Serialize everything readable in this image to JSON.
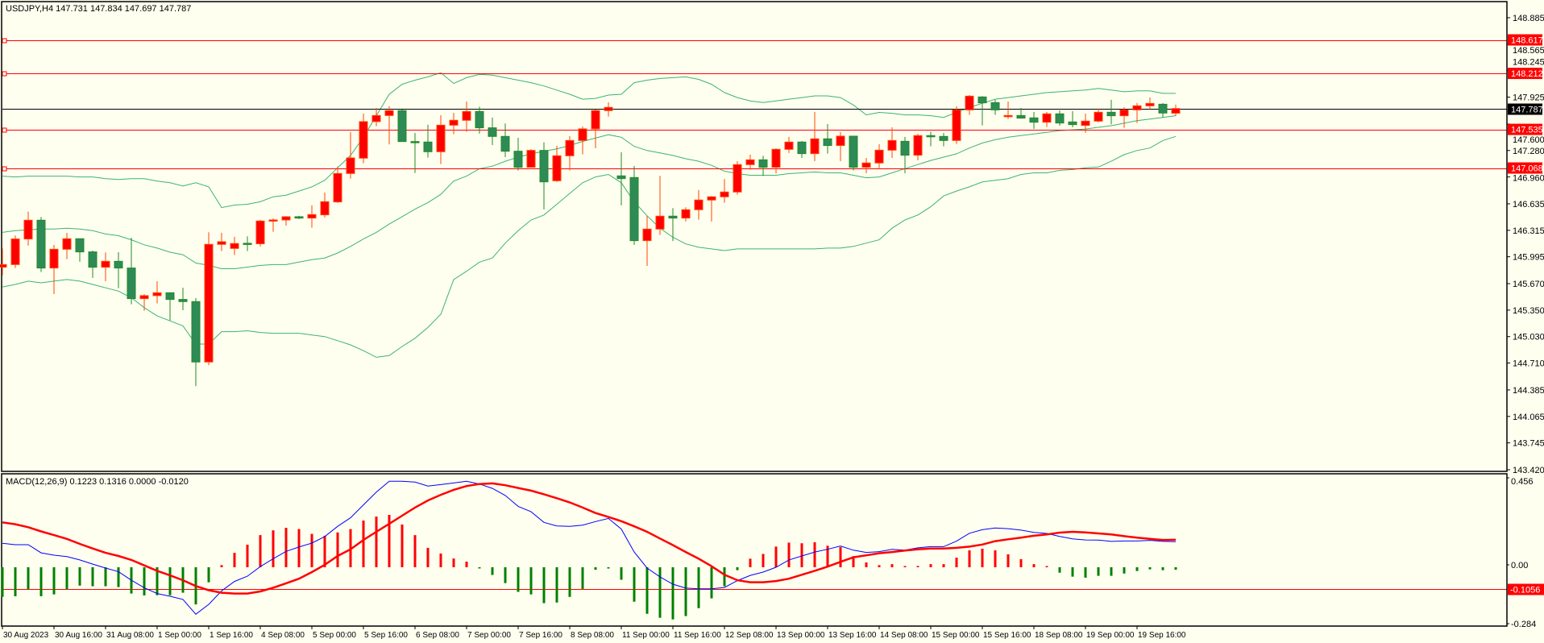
{
  "header": {
    "symbol_info": "USDJPY,H4  147.731 147.834 147.697 147.787",
    "macd_info": "MACD(12,26,9) 0.1223 0.1316 0.0000 -0.0120"
  },
  "colors": {
    "background": "#FFFFF0",
    "bull_body": "#FF0000",
    "bull_wick": "#FF4500",
    "bear_body": "#2E8B57",
    "bear_wick": "#228B22",
    "bands": "#3CB371",
    "level_line": "#FF0000",
    "price_line": "#000000",
    "macd_main": "#0000FF",
    "macd_signal": "#FF0000",
    "hist_pos": "#FF0000",
    "hist_neg": "#008000"
  },
  "price_axis": {
    "labels": [
      "148.885",
      "148.565",
      "148.245",
      "147.925",
      "147.600",
      "147.280",
      "146.960",
      "146.635",
      "146.315",
      "145.995",
      "145.670",
      "145.350",
      "145.030",
      "144.710",
      "144.385",
      "144.065",
      "143.745",
      "143.420"
    ]
  },
  "levels": [
    {
      "value": "148.617"
    },
    {
      "value": "148.212"
    },
    {
      "value": "147.535"
    },
    {
      "value": "147.068"
    }
  ],
  "current_price": "147.787",
  "macd_axis": {
    "labels": [
      "0.456",
      "0.00",
      "-0.284"
    ],
    "level": "-0.1056"
  },
  "time_axis": {
    "labels": [
      "30 Aug 2023",
      "30 Aug 16:00",
      "31 Aug 08:00",
      "1 Sep 00:00",
      "1 Sep 16:00",
      "4 Sep 08:00",
      "5 Sep 00:00",
      "5 Sep 16:00",
      "6 Sep 08:00",
      "7 Sep 00:00",
      "7 Sep 16:00",
      "8 Sep 08:00",
      "11 Sep 00:00",
      "11 Sep 16:00",
      "12 Sep 08:00",
      "13 Sep 00:00",
      "13 Sep 16:00",
      "14 Sep 08:00",
      "15 Sep 00:00",
      "15 Sep 16:00",
      "18 Sep 08:00",
      "19 Sep 00:00",
      "19 Sep 16:00"
    ]
  },
  "chart_data": {
    "type": "candlestick",
    "symbol": "USDJPY",
    "timeframe": "H4",
    "ylim": [
      143.42,
      148.885
    ],
    "ohlc": [
      [
        145.869,
        146.096,
        145.771,
        145.901
      ],
      [
        145.901,
        146.252,
        145.859,
        146.21
      ],
      [
        146.21,
        146.541,
        146.129,
        146.437
      ],
      [
        146.437,
        146.476,
        145.81,
        145.859
      ],
      [
        145.859,
        146.138,
        145.544,
        146.086
      ],
      [
        146.086,
        146.284,
        145.966,
        146.213
      ],
      [
        146.213,
        146.213,
        145.934,
        146.054
      ],
      [
        146.054,
        146.07,
        145.739,
        145.869
      ],
      [
        145.869,
        146.047,
        145.7,
        145.94
      ],
      [
        145.94,
        146.05,
        145.616,
        145.859
      ],
      [
        145.859,
        146.226,
        145.421,
        145.489
      ],
      [
        145.489,
        145.544,
        145.343,
        145.525
      ],
      [
        145.525,
        145.7,
        145.431,
        145.56
      ],
      [
        145.56,
        145.56,
        145.226,
        145.479
      ],
      [
        145.479,
        145.622,
        145.349,
        145.453
      ],
      [
        145.453,
        145.496,
        144.431,
        144.723
      ],
      [
        144.723,
        146.291,
        144.684,
        146.145
      ],
      [
        146.145,
        146.285,
        146.064,
        146.177
      ],
      [
        146.096,
        146.236,
        146.015,
        146.155
      ],
      [
        146.158,
        146.242,
        146.064,
        146.155
      ],
      [
        146.152,
        146.44,
        146.119,
        146.427
      ],
      [
        146.427,
        146.46,
        146.297,
        146.44
      ],
      [
        146.44,
        146.486,
        146.372,
        146.479
      ],
      [
        146.479,
        146.49,
        146.45,
        146.463
      ],
      [
        146.463,
        146.616,
        146.346,
        146.505
      ],
      [
        146.502,
        146.771,
        146.47,
        146.661
      ],
      [
        146.658,
        147.086,
        146.645,
        147.002
      ],
      [
        147.002,
        147.502,
        146.94,
        147.19
      ],
      [
        147.187,
        147.726,
        147.125,
        147.629
      ],
      [
        147.629,
        147.794,
        147.573,
        147.703
      ],
      [
        147.703,
        147.814,
        147.353,
        147.762
      ],
      [
        147.762,
        147.775,
        147.388,
        147.388
      ],
      [
        147.388,
        147.492,
        147.009,
        147.385
      ],
      [
        147.382,
        147.59,
        147.194,
        147.265
      ],
      [
        147.265,
        147.707,
        147.116,
        147.586
      ],
      [
        147.586,
        147.736,
        147.476,
        147.645
      ],
      [
        147.645,
        147.872,
        147.505,
        147.752
      ],
      [
        147.752,
        147.81,
        147.483,
        147.554
      ],
      [
        147.554,
        147.677,
        147.346,
        147.45
      ],
      [
        147.45,
        147.606,
        147.2,
        147.271
      ],
      [
        147.271,
        147.434,
        147.038,
        147.077
      ],
      [
        147.077,
        147.297,
        147.077,
        147.281
      ],
      [
        147.281,
        147.379,
        146.567,
        146.901
      ],
      [
        146.914,
        147.336,
        146.9,
        147.216
      ],
      [
        147.216,
        147.453,
        147.038,
        147.401
      ],
      [
        147.401,
        147.57,
        147.233,
        147.541
      ],
      [
        147.541,
        147.775,
        147.307,
        147.762
      ],
      [
        147.762,
        147.862,
        147.69,
        147.801
      ],
      [
        146.973,
        147.259,
        146.616,
        146.94
      ],
      [
        146.953,
        147.093,
        146.138,
        146.19
      ],
      [
        146.19,
        146.486,
        145.885,
        146.33
      ],
      [
        146.33,
        146.973,
        146.258,
        146.486
      ],
      [
        146.486,
        146.583,
        146.184,
        146.463
      ],
      [
        146.463,
        146.593,
        146.421,
        146.564
      ],
      [
        146.564,
        146.801,
        146.444,
        146.681
      ],
      [
        146.681,
        146.73,
        146.421,
        146.72
      ],
      [
        146.72,
        146.934,
        146.648,
        146.778
      ],
      [
        146.778,
        147.151,
        146.746,
        147.109
      ],
      [
        147.109,
        147.229,
        147.047,
        147.167
      ],
      [
        147.167,
        147.216,
        146.973,
        147.077
      ],
      [
        147.077,
        147.307,
        147.005,
        147.294
      ],
      [
        147.294,
        147.444,
        147.249,
        147.382
      ],
      [
        147.382,
        147.395,
        147.19,
        147.242
      ],
      [
        147.242,
        147.746,
        147.151,
        147.421
      ],
      [
        147.421,
        147.599,
        147.242,
        147.34
      ],
      [
        147.34,
        147.502,
        147.151,
        147.453
      ],
      [
        147.453,
        147.453,
        147.038,
        147.077
      ],
      [
        147.077,
        147.19,
        147.005,
        147.129
      ],
      [
        147.129,
        147.356,
        147.054,
        147.284
      ],
      [
        147.284,
        147.56,
        147.19,
        147.401
      ],
      [
        147.391,
        147.444,
        147.005,
        147.223
      ],
      [
        147.223,
        147.482,
        147.161,
        147.46
      ],
      [
        147.46,
        147.508,
        147.33,
        147.45
      ],
      [
        147.45,
        147.492,
        147.33,
        147.401
      ],
      [
        147.401,
        147.814,
        147.359,
        147.771
      ],
      [
        147.771,
        147.95,
        147.71,
        147.937
      ],
      [
        147.927,
        147.937,
        147.583,
        147.856
      ],
      [
        147.859,
        147.892,
        147.71,
        147.771
      ],
      [
        147.69,
        147.872,
        147.661,
        147.703
      ],
      [
        147.703,
        147.794,
        147.671,
        147.671
      ],
      [
        147.674,
        147.745,
        147.541,
        147.622
      ],
      [
        147.622,
        147.745,
        147.564,
        147.723
      ],
      [
        147.723,
        147.765,
        147.58,
        147.612
      ],
      [
        147.625,
        147.755,
        147.56,
        147.593
      ],
      [
        147.583,
        147.726,
        147.492,
        147.635
      ],
      [
        147.635,
        147.788,
        147.62,
        147.742
      ],
      [
        147.742,
        147.892,
        147.596,
        147.7
      ],
      [
        147.7,
        147.804,
        147.554,
        147.771
      ],
      [
        147.771,
        147.853,
        147.612,
        147.82
      ],
      [
        147.82,
        147.921,
        147.778,
        147.849
      ],
      [
        147.839,
        147.853,
        147.681,
        147.733
      ],
      [
        147.731,
        147.834,
        147.697,
        147.787
      ]
    ],
    "bollinger": {
      "upper": [
        146.97,
        146.96,
        146.97,
        146.97,
        146.97,
        146.97,
        146.96,
        146.96,
        146.94,
        146.93,
        146.94,
        146.94,
        146.91,
        146.89,
        146.85,
        146.89,
        146.84,
        146.59,
        146.62,
        146.63,
        146.66,
        146.72,
        146.74,
        146.79,
        146.84,
        146.92,
        147.07,
        147.22,
        147.44,
        147.7,
        147.96,
        148.08,
        148.13,
        148.17,
        148.22,
        148.09,
        148.16,
        148.2,
        148.19,
        148.16,
        148.13,
        148.1,
        148.06,
        148.01,
        147.96,
        147.9,
        147.91,
        147.95,
        147.96,
        148.1,
        148.13,
        148.15,
        148.16,
        148.17,
        148.14,
        148.08,
        147.98,
        147.92,
        147.88,
        147.86,
        147.88,
        147.9,
        147.92,
        147.94,
        147.94,
        147.92,
        147.83,
        147.71,
        147.74,
        147.73,
        147.71,
        147.71,
        147.7,
        147.68,
        147.74,
        147.8,
        147.85,
        147.9,
        147.92,
        147.94,
        147.96,
        147.98,
        147.99,
        148.0,
        148.01,
        148.03,
        148.01,
        147.99,
        148.0,
        148.0,
        147.97,
        147.97
      ],
      "middle": [
        146.29,
        146.31,
        146.32,
        146.33,
        146.33,
        146.34,
        146.33,
        146.31,
        146.27,
        146.25,
        146.2,
        146.14,
        146.1,
        146.05,
        146.02,
        145.92,
        145.89,
        145.85,
        145.85,
        145.87,
        145.89,
        145.9,
        145.9,
        145.93,
        145.96,
        145.98,
        146.04,
        146.12,
        146.21,
        146.29,
        146.39,
        146.48,
        146.57,
        146.65,
        146.75,
        146.91,
        146.97,
        147.06,
        147.09,
        147.15,
        147.2,
        147.24,
        147.27,
        147.3,
        147.34,
        147.39,
        147.43,
        147.47,
        147.44,
        147.33,
        147.28,
        147.25,
        147.22,
        147.18,
        147.15,
        147.1,
        147.03,
        147.0,
        146.98,
        146.98,
        146.98,
        147.0,
        147.01,
        147.02,
        147.01,
        147.01,
        146.98,
        146.95,
        146.96,
        147.01,
        147.06,
        147.11,
        147.16,
        147.2,
        147.24,
        147.31,
        147.37,
        147.41,
        147.44,
        147.46,
        147.48,
        147.5,
        147.52,
        147.53,
        147.54,
        147.56,
        147.58,
        147.61,
        147.64,
        147.66,
        147.68,
        147.7
      ],
      "lower": [
        145.63,
        145.66,
        145.7,
        145.68,
        145.7,
        145.72,
        145.7,
        145.66,
        145.62,
        145.58,
        145.5,
        145.38,
        145.28,
        145.22,
        145.16,
        144.94,
        144.94,
        145.09,
        145.09,
        145.1,
        145.08,
        145.07,
        145.07,
        145.07,
        145.05,
        145.03,
        144.98,
        144.93,
        144.86,
        144.78,
        144.8,
        144.91,
        145.01,
        145.14,
        145.3,
        145.72,
        145.82,
        145.93,
        145.98,
        146.16,
        146.31,
        146.44,
        146.5,
        146.63,
        146.76,
        146.89,
        146.96,
        146.99,
        146.89,
        146.66,
        146.49,
        146.34,
        146.23,
        146.15,
        146.11,
        146.09,
        146.07,
        146.09,
        146.09,
        146.09,
        146.09,
        146.09,
        146.09,
        146.09,
        146.1,
        146.1,
        146.12,
        146.16,
        146.2,
        146.34,
        146.44,
        146.5,
        146.6,
        146.73,
        146.79,
        146.84,
        146.9,
        146.92,
        146.94,
        146.99,
        147.01,
        147.01,
        147.04,
        147.05,
        147.07,
        147.08,
        147.15,
        147.23,
        147.28,
        147.31,
        147.4,
        147.45
      ]
    },
    "macd": {
      "ylim": [
        -0.284,
        0.456
      ],
      "histogram": [
        -0.142,
        -0.139,
        -0.106,
        -0.139,
        -0.13,
        -0.106,
        -0.088,
        -0.091,
        -0.091,
        -0.095,
        -0.126,
        -0.135,
        -0.134,
        -0.134,
        -0.122,
        -0.178,
        -0.072,
        0.01,
        0.069,
        0.108,
        0.154,
        0.177,
        0.189,
        0.183,
        0.16,
        0.151,
        0.167,
        0.183,
        0.224,
        0.243,
        0.251,
        0.205,
        0.154,
        0.093,
        0.066,
        0.042,
        0.027,
        -0.004,
        -0.037,
        -0.076,
        -0.118,
        -0.13,
        -0.172,
        -0.169,
        -0.142,
        -0.104,
        -0.012,
        -0.006,
        -0.06,
        -0.165,
        -0.223,
        -0.242,
        -0.25,
        -0.234,
        -0.196,
        -0.149,
        -0.091,
        -0.014,
        0.041,
        0.064,
        0.099,
        0.118,
        0.115,
        0.12,
        0.103,
        0.097,
        0.053,
        0.023,
        0.01,
        0.015,
        0.001,
        0.006,
        0.015,
        0.015,
        0.046,
        0.081,
        0.089,
        0.081,
        0.062,
        0.039,
        0.015,
        0.002,
        -0.026,
        -0.045,
        -0.05,
        -0.041,
        -0.041,
        -0.03,
        -0.018,
        -0.01,
        -0.014,
        -0.012
      ],
      "main": [
        0.115,
        0.108,
        0.108,
        0.069,
        0.058,
        0.051,
        0.035,
        0.015,
        -0.004,
        -0.021,
        -0.062,
        -0.098,
        -0.126,
        -0.139,
        -0.154,
        -0.225,
        -0.178,
        -0.113,
        -0.068,
        -0.043,
        0.003,
        0.041,
        0.076,
        0.097,
        0.116,
        0.147,
        0.196,
        0.237,
        0.299,
        0.36,
        0.412,
        0.412,
        0.408,
        0.389,
        0.396,
        0.404,
        0.412,
        0.399,
        0.378,
        0.344,
        0.292,
        0.266,
        0.215,
        0.198,
        0.196,
        0.202,
        0.219,
        0.234,
        0.183,
        0.073,
        -0.004,
        -0.046,
        -0.081,
        -0.1,
        -0.103,
        -0.103,
        -0.097,
        -0.064,
        -0.039,
        -0.023,
        0.0,
        0.035,
        0.054,
        0.073,
        0.086,
        0.102,
        0.082,
        0.071,
        0.075,
        0.086,
        0.082,
        0.093,
        0.099,
        0.099,
        0.125,
        0.163,
        0.18,
        0.188,
        0.185,
        0.178,
        0.167,
        0.162,
        0.148,
        0.136,
        0.131,
        0.13,
        0.124,
        0.126,
        0.126,
        0.129,
        0.124,
        0.1223
      ],
      "signal": [
        0.215,
        0.206,
        0.192,
        0.172,
        0.154,
        0.136,
        0.112,
        0.09,
        0.069,
        0.054,
        0.035,
        0.009,
        -0.017,
        -0.039,
        -0.062,
        -0.09,
        -0.11,
        -0.122,
        -0.126,
        -0.126,
        -0.116,
        -0.098,
        -0.077,
        -0.055,
        -0.023,
        0.012,
        0.054,
        0.086,
        0.131,
        0.17,
        0.208,
        0.247,
        0.286,
        0.32,
        0.347,
        0.371,
        0.389,
        0.399,
        0.402,
        0.393,
        0.38,
        0.367,
        0.35,
        0.331,
        0.311,
        0.286,
        0.26,
        0.241,
        0.221,
        0.196,
        0.17,
        0.138,
        0.106,
        0.073,
        0.041,
        0.005,
        -0.036,
        -0.062,
        -0.072,
        -0.072,
        -0.066,
        -0.055,
        -0.036,
        -0.017,
        0.003,
        0.026,
        0.048,
        0.057,
        0.067,
        0.073,
        0.08,
        0.086,
        0.09,
        0.09,
        0.093,
        0.099,
        0.109,
        0.125,
        0.134,
        0.142,
        0.151,
        0.157,
        0.166,
        0.17,
        0.167,
        0.162,
        0.157,
        0.149,
        0.142,
        0.136,
        0.131,
        0.1316
      ]
    }
  }
}
